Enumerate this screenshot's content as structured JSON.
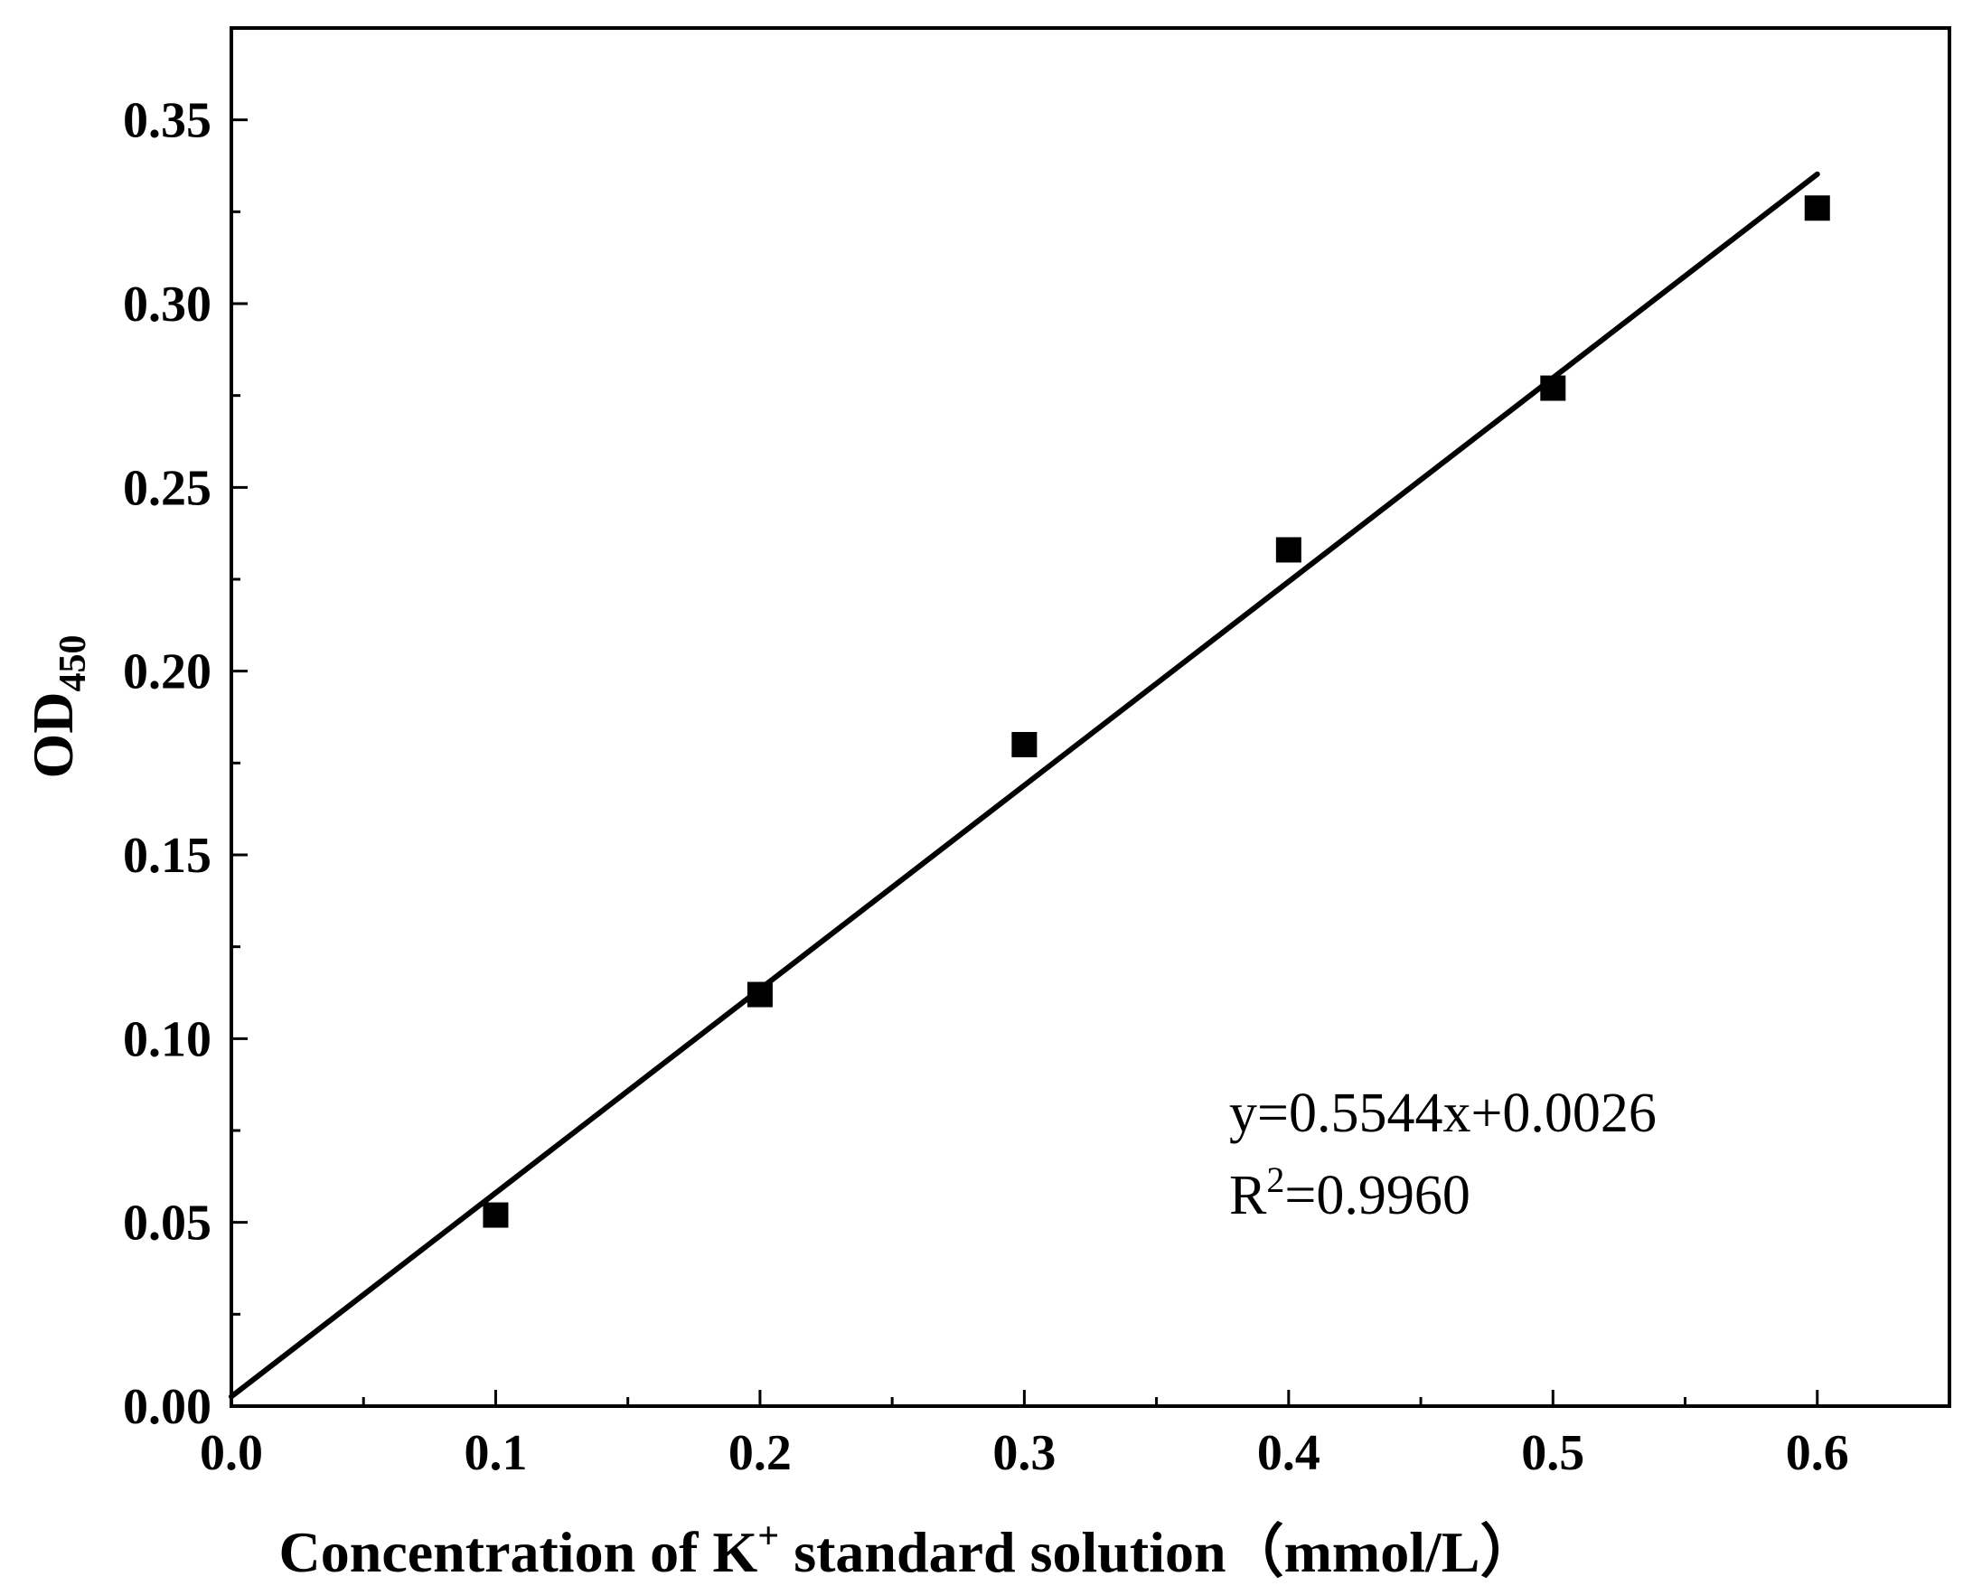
{
  "chart_data": {
    "type": "scatter",
    "title": "",
    "xlabel": "Concentration of K⁺ standard solution（mmol/L）",
    "xlabel_main": "Concentration of K",
    "xlabel_sup": "+",
    "xlabel_rest": " standard solution（mmol/L）",
    "ylabel": "OD450",
    "ylabel_main": "OD",
    "ylabel_sub": "450",
    "xlim": [
      0.0,
      0.65
    ],
    "ylim": [
      0.0,
      0.375
    ],
    "xticks": [
      0.0,
      0.1,
      0.2,
      0.3,
      0.4,
      0.5,
      0.6
    ],
    "xtick_labels": [
      "0.0",
      "0.1",
      "0.2",
      "0.3",
      "0.4",
      "0.5",
      "0.6"
    ],
    "yticks": [
      0.0,
      0.05,
      0.1,
      0.15,
      0.2,
      0.25,
      0.3,
      0.35
    ],
    "ytick_labels": [
      "0.00",
      "0.05",
      "0.10",
      "0.15",
      "0.20",
      "0.25",
      "0.30",
      "0.35"
    ],
    "x_minor_step": 0.05,
    "y_minor_step": 0.025,
    "grid": false,
    "series": [
      {
        "name": "K+ standard",
        "marker": "square",
        "x": [
          0.1,
          0.2,
          0.3,
          0.4,
          0.5,
          0.6
        ],
        "y": [
          0.052,
          0.112,
          0.18,
          0.233,
          0.277,
          0.326
        ]
      }
    ],
    "fit": {
      "slope": 0.5544,
      "intercept": 0.0026,
      "x_range": [
        0.0,
        0.6
      ]
    },
    "annotation": {
      "equation": "y=0.5544x+0.0026",
      "r2_main": "R",
      "r2_sup": "2",
      "r2_value": "=0.9960"
    },
    "colors": {
      "marker": "#000000",
      "line": "#000000",
      "axis": "#000000"
    }
  }
}
